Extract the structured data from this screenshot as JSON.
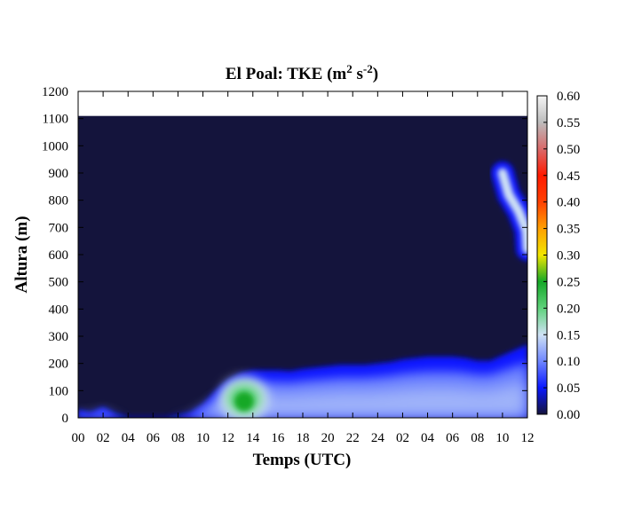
{
  "chart_data": {
    "type": "heatmap",
    "title": {
      "main": "El Poal: TKE (m",
      "sup1": "2",
      "mid": " s",
      "sup2": "-2",
      "end": ")"
    },
    "xlabel": "Temps (UTC)",
    "ylabel": "Altura (m)",
    "x_ticks": [
      "00",
      "02",
      "04",
      "06",
      "08",
      "10",
      "12",
      "14",
      "16",
      "18",
      "20",
      "22",
      "24",
      "02",
      "04",
      "06",
      "08",
      "10",
      "12"
    ],
    "ylim": [
      0,
      1200
    ],
    "y_ticks": [
      0,
      100,
      200,
      300,
      400,
      500,
      600,
      700,
      800,
      900,
      1000,
      1100,
      1200
    ],
    "data_top": 1110,
    "colorbar": {
      "range": [
        0,
        0.6
      ],
      "ticks": [
        "0.00",
        "0.05",
        "0.10",
        "0.15",
        "0.20",
        "0.25",
        "0.30",
        "0.35",
        "0.40",
        "0.45",
        "0.50",
        "0.55",
        "0.60"
      ],
      "stops": [
        {
          "v": 0.0,
          "c": "#14143c"
        },
        {
          "v": 0.05,
          "c": "#0a18ff"
        },
        {
          "v": 0.1,
          "c": "#6f86ff"
        },
        {
          "v": 0.15,
          "c": "#cfe2f4"
        },
        {
          "v": 0.2,
          "c": "#5fd27b"
        },
        {
          "v": 0.25,
          "c": "#15a827"
        },
        {
          "v": 0.3,
          "c": "#f2e600"
        },
        {
          "v": 0.35,
          "c": "#ffa000"
        },
        {
          "v": 0.4,
          "c": "#ff4000"
        },
        {
          "v": 0.45,
          "c": "#ff1a00"
        },
        {
          "v": 0.5,
          "c": "#d96a6a"
        },
        {
          "v": 0.55,
          "c": "#bcbcbc"
        },
        {
          "v": 0.6,
          "c": "#f5f5f5"
        }
      ]
    },
    "series": [
      {
        "x": [
          0,
          1,
          2,
          3,
          4,
          5,
          6,
          7,
          8,
          9,
          10,
          11,
          12,
          13,
          14,
          15,
          16,
          17,
          18,
          19,
          20,
          21,
          22,
          23,
          24,
          25,
          26,
          27,
          28,
          29,
          30,
          31,
          32,
          33,
          34,
          35,
          36
        ],
        "top": [
          30,
          20,
          40,
          15,
          5,
          5,
          5,
          5,
          10,
          20,
          50,
          100,
          140,
          165,
          175,
          175,
          175,
          172,
          180,
          185,
          190,
          195,
          195,
          195,
          200,
          205,
          215,
          220,
          225,
          225,
          225,
          220,
          210,
          210,
          230,
          250,
          270
        ]
      }
    ],
    "features": [
      {
        "label": "green core",
        "x_center": 13.3,
        "z_center": 70,
        "x_halfwidth": 1.7,
        "z_halfwidth": 70,
        "peak": 0.25
      },
      {
        "label": "upper plume",
        "points": [
          [
            34,
            900
          ],
          [
            34.5,
            820
          ],
          [
            35.3,
            760
          ],
          [
            35.9,
            690
          ],
          [
            36,
            620
          ]
        ],
        "peak": 0.14
      }
    ]
  }
}
